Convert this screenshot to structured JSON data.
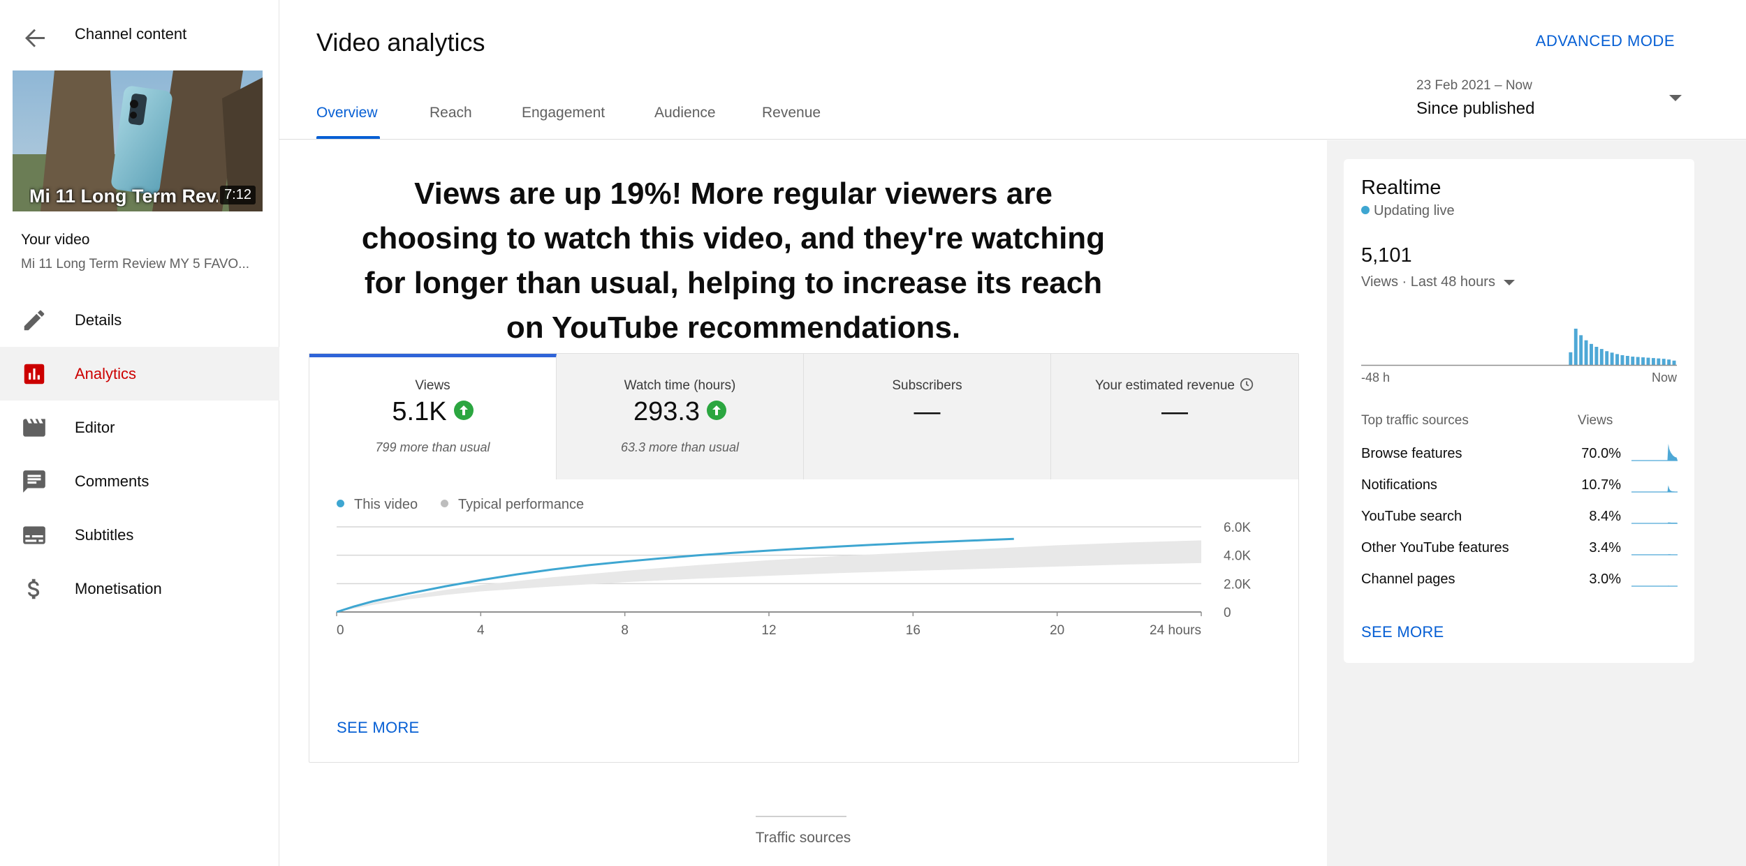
{
  "sidebar": {
    "title": "Channel content",
    "thumbnail": {
      "title_overlay": "Mi 11 Long Term Rev...",
      "duration": "7:12"
    },
    "your_video_label": "Your video",
    "video_name": "Mi 11 Long Term Review MY 5 FAVO...",
    "items": [
      {
        "label": "Details",
        "icon": "pencil-icon"
      },
      {
        "label": "Analytics",
        "icon": "analytics-icon",
        "active": true
      },
      {
        "label": "Editor",
        "icon": "clapperboard-icon"
      },
      {
        "label": "Comments",
        "icon": "comment-icon"
      },
      {
        "label": "Subtitles",
        "icon": "subtitles-icon"
      },
      {
        "label": "Monetisation",
        "icon": "dollar-icon"
      }
    ]
  },
  "header": {
    "title": "Video analytics",
    "advanced_mode": "ADVANCED MODE",
    "tabs": [
      "Overview",
      "Reach",
      "Engagement",
      "Audience",
      "Revenue"
    ],
    "active_tab": "Overview",
    "date_range": "23 Feb 2021 – Now",
    "date_value": "Since published"
  },
  "main": {
    "headline": "Views are up 19%! More regular viewers are choosing to watch this video, and they're watching for longer than usual, helping to increase its reach on YouTube recommendations.",
    "metrics": [
      {
        "label": "Views",
        "value": "5.1K",
        "trend": "up",
        "sub": "799 more than usual",
        "active": true
      },
      {
        "label": "Watch time (hours)",
        "value": "293.3",
        "trend": "up",
        "sub": "63.3 more than usual"
      },
      {
        "label": "Subscribers",
        "value": "—",
        "sub": ""
      },
      {
        "label": "Your estimated revenue",
        "value": "—",
        "sub": "",
        "icon": "clock-icon"
      }
    ],
    "legend": [
      "This video",
      "Typical performance"
    ],
    "see_more": "SEE MORE",
    "traffic_sources_label": "Traffic sources"
  },
  "colors": {
    "accent": "#065fd4",
    "active_red": "#cc0000",
    "this_video": "#3ea6d1",
    "typical": "#c9c9c9",
    "band": "#e8e8e8",
    "trend_up": "#2ba640",
    "realtime_bar": "#4ea8d6"
  },
  "chart_data": {
    "type": "area",
    "x_ticks": [
      "0",
      "4",
      "8",
      "12",
      "16",
      "20",
      "24 hours"
    ],
    "xlim": [
      0,
      24
    ],
    "y_ticks": [
      "0",
      "2.0K",
      "4.0K",
      "6.0K"
    ],
    "ylim": [
      0,
      6000
    ],
    "series": [
      {
        "name": "This video",
        "x": [
          0,
          0.5,
          1,
          2,
          3,
          4,
          5,
          6,
          7,
          8,
          9,
          10,
          11,
          12,
          13,
          14,
          15,
          16,
          17,
          18,
          18.8
        ],
        "values": [
          0,
          400,
          750,
          1300,
          1800,
          2250,
          2650,
          3000,
          3300,
          3550,
          3780,
          3990,
          4170,
          4330,
          4480,
          4620,
          4750,
          4870,
          4970,
          5070,
          5150
        ]
      },
      {
        "name": "Typical performance",
        "x": [
          0,
          1,
          2,
          3,
          4,
          6,
          8,
          10,
          12,
          14,
          16,
          18,
          20,
          22,
          24
        ],
        "lower": [
          0,
          500,
          900,
          1200,
          1450,
          1800,
          2100,
          2350,
          2550,
          2750,
          2900,
          3050,
          3200,
          3350,
          3450
        ],
        "upper": [
          0,
          650,
          1150,
          1550,
          1900,
          2450,
          2900,
          3300,
          3650,
          3950,
          4200,
          4450,
          4700,
          4900,
          5050
        ]
      }
    ],
    "grid": true
  },
  "realtime": {
    "title": "Realtime",
    "status": "Updating live",
    "count": "5,101",
    "metric_label": "Views · Last 48 hours",
    "axis_left": "-48 h",
    "axis_right": "Now",
    "chart_data": {
      "type": "bar",
      "bars": [
        0,
        0,
        0,
        0,
        0,
        0,
        0,
        0,
        0,
        0,
        0,
        0,
        0,
        0,
        0,
        0,
        0,
        0,
        0,
        0,
        0,
        0,
        0,
        0,
        0,
        0,
        0,
        0,
        0,
        0,
        0,
        0,
        0,
        0,
        0,
        0,
        0,
        0,
        0,
        0,
        35,
        100,
        82,
        68,
        58,
        50,
        44,
        38,
        34,
        30,
        27,
        25,
        23,
        22,
        21,
        20,
        19,
        18,
        17,
        15,
        12
      ]
    },
    "table_header": {
      "source": "Top traffic sources",
      "views": "Views"
    },
    "sources": [
      {
        "name": "Browse features",
        "pct": "70.0%",
        "spark": [
          0,
          0,
          0,
          0,
          0,
          0,
          0,
          0,
          0,
          0,
          0,
          0,
          0,
          0,
          0,
          0,
          0,
          0,
          0,
          0,
          0,
          0,
          0,
          0,
          0,
          0,
          0,
          0,
          0,
          0,
          0,
          0,
          0,
          0,
          0,
          0,
          0,
          0,
          0,
          0,
          100,
          70,
          55,
          45,
          38,
          30,
          26,
          22,
          20,
          18
        ]
      },
      {
        "name": "Notifications",
        "pct": "10.7%",
        "spark": [
          0,
          0,
          0,
          0,
          0,
          0,
          0,
          0,
          0,
          0,
          0,
          0,
          0,
          0,
          0,
          0,
          0,
          0,
          0,
          0,
          0,
          0,
          0,
          0,
          0,
          0,
          0,
          0,
          0,
          0,
          0,
          0,
          0,
          0,
          0,
          0,
          0,
          0,
          0,
          0,
          40,
          20,
          10,
          6,
          4,
          3,
          3,
          2,
          2,
          2
        ]
      },
      {
        "name": "YouTube search",
        "pct": "8.4%",
        "spark": [
          0,
          0,
          0,
          0,
          0,
          0,
          0,
          0,
          0,
          0,
          0,
          0,
          0,
          0,
          0,
          0,
          0,
          0,
          0,
          0,
          0,
          0,
          0,
          0,
          0,
          0,
          0,
          0,
          0,
          0,
          0,
          0,
          0,
          0,
          0,
          0,
          0,
          0,
          0,
          0,
          6,
          5,
          5,
          4,
          4,
          4,
          4,
          4,
          4,
          4
        ]
      },
      {
        "name": "Other YouTube features",
        "pct": "3.4%",
        "spark": [
          0,
          0,
          0,
          0,
          0,
          0,
          0,
          0,
          0,
          0,
          0,
          0,
          0,
          0,
          0,
          0,
          0,
          0,
          0,
          0,
          0,
          0,
          0,
          0,
          0,
          0,
          0,
          0,
          0,
          0,
          0,
          0,
          0,
          0,
          0,
          0,
          0,
          0,
          0,
          0,
          3,
          3,
          3,
          2,
          2,
          2,
          2,
          2,
          2,
          2
        ]
      },
      {
        "name": "Channel pages",
        "pct": "3.0%",
        "spark": [
          0,
          0,
          0,
          0,
          0,
          0,
          0,
          0,
          0,
          0,
          0,
          0,
          0,
          0,
          0,
          0,
          0,
          0,
          0,
          0,
          0,
          0,
          0,
          0,
          0,
          0,
          0,
          0,
          0,
          0,
          0,
          0,
          0,
          0,
          0,
          0,
          0,
          0,
          0,
          0,
          3,
          2,
          2,
          2,
          2,
          2,
          2,
          2,
          2,
          2
        ]
      }
    ],
    "see_more": "SEE MORE"
  }
}
